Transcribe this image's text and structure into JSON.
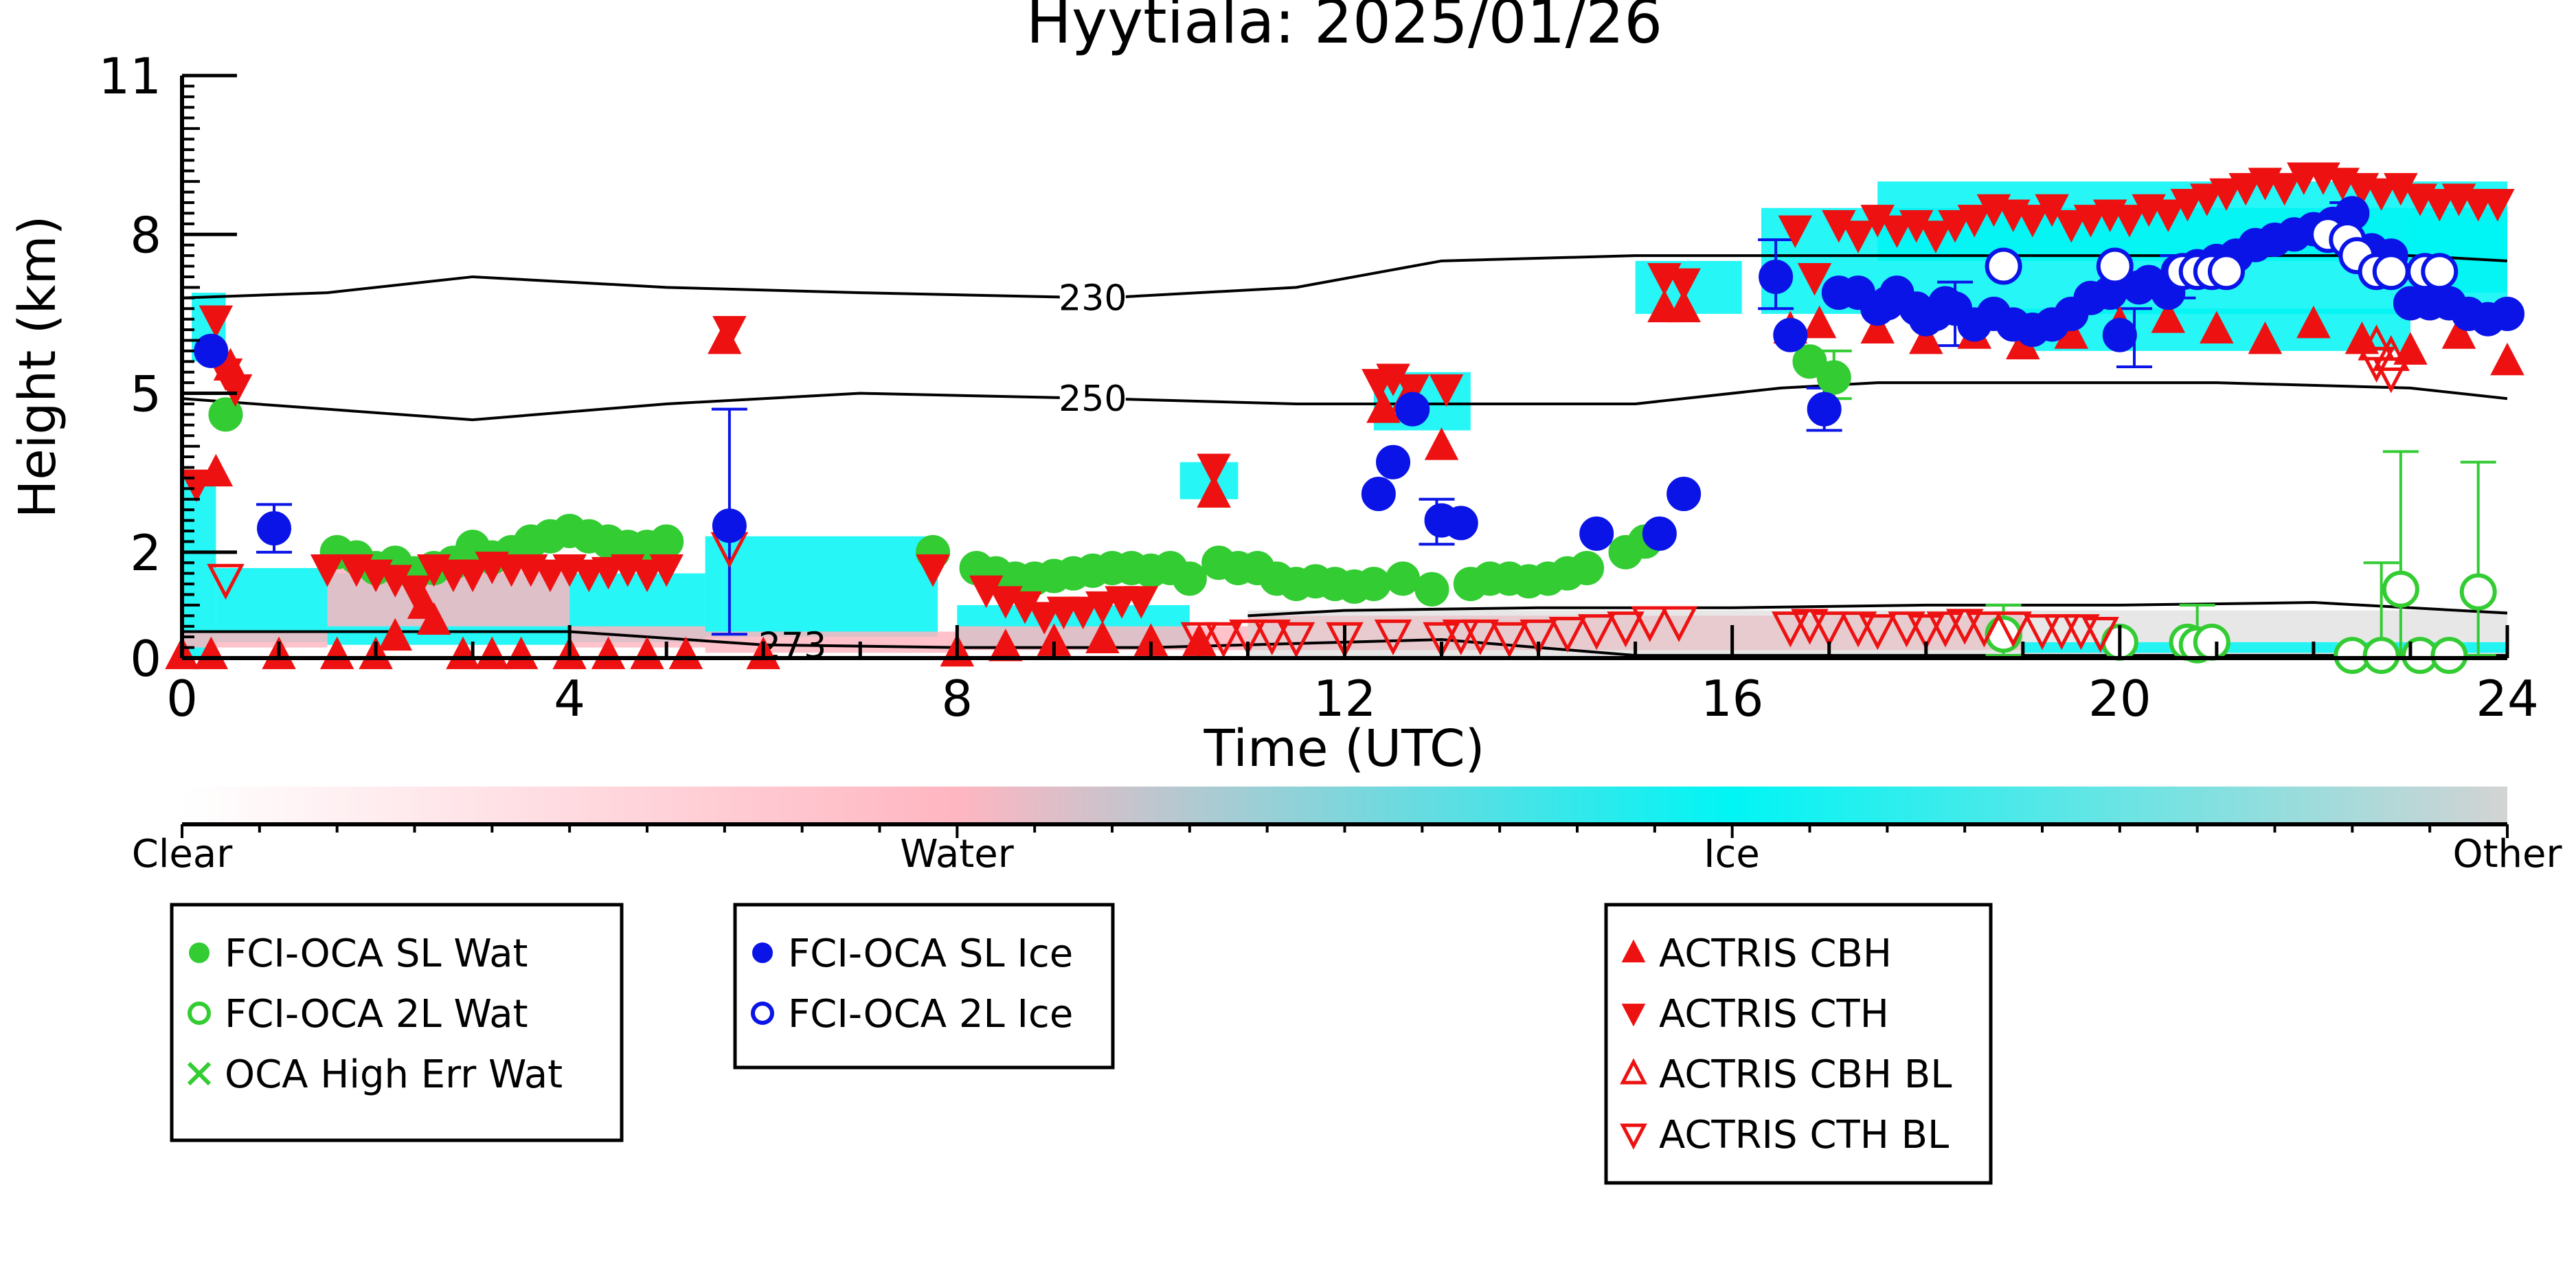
{
  "chart_data": {
    "type": "scatter",
    "title": "Hyytiala: 2025/01/26",
    "xlabel": "Time (UTC)",
    "ylabel": "Height (km)",
    "xlim": [
      0,
      24
    ],
    "ylim": [
      0,
      11
    ],
    "x_ticks": [
      "0",
      "4",
      "8",
      "12",
      "16",
      "20",
      "24"
    ],
    "y_ticks": [
      "0",
      "2",
      "5",
      "8",
      "11"
    ],
    "grid": false,
    "colors": {
      "sl_wat": "#33cc33",
      "sl_ice": "#0a14e6",
      "actris": "#ee1111",
      "ice": "#00f5f5",
      "water": "#ffb6c1",
      "other": "#d3d3d3",
      "contour": "#000000"
    },
    "colorbar": {
      "labels": [
        "Clear",
        "Water",
        "Ice",
        "Other"
      ]
    },
    "legends": [
      {
        "items": [
          {
            "label": "FCI-OCA SL Wat",
            "marker": "filled-circle",
            "color": "#33cc33"
          },
          {
            "label": "FCI-OCA 2L Wat",
            "marker": "open-circle",
            "color": "#33cc33"
          },
          {
            "label": "OCA High Err Wat",
            "marker": "cross",
            "color": "#33cc33"
          }
        ]
      },
      {
        "items": [
          {
            "label": "FCI-OCA SL Ice",
            "marker": "filled-circle",
            "color": "#0a14e6"
          },
          {
            "label": "FCI-OCA 2L Ice",
            "marker": "open-circle",
            "color": "#0a14e6"
          }
        ]
      },
      {
        "items": [
          {
            "label": "ACTRIS CBH",
            "marker": "triangle-up",
            "color": "#ee1111"
          },
          {
            "label": "ACTRIS CTH",
            "marker": "triangle-down",
            "color": "#ee1111"
          },
          {
            "label": "ACTRIS CBH BL",
            "marker": "open-triangle-up",
            "color": "#ee1111"
          },
          {
            "label": "ACTRIS CTH BL",
            "marker": "open-triangle-down",
            "color": "#ee1111"
          }
        ]
      }
    ],
    "contours": [
      {
        "label": "230",
        "x": [
          0,
          1.5,
          3,
          5,
          7,
          9.5,
          11.5,
          13,
          15,
          17,
          19,
          21,
          23,
          24
        ],
        "y": [
          6.8,
          6.9,
          7.2,
          7.0,
          6.9,
          6.8,
          7.0,
          7.5,
          7.6,
          7.6,
          7.6,
          7.6,
          7.6,
          7.5
        ]
      },
      {
        "label": "250",
        "x": [
          0,
          1.5,
          3,
          5,
          7,
          9.5,
          11.5,
          13,
          15,
          16.5,
          17.5,
          19,
          21,
          23,
          24
        ],
        "y": [
          4.9,
          4.7,
          4.5,
          4.8,
          5.0,
          4.9,
          4.8,
          4.8,
          4.8,
          5.1,
          5.2,
          5.2,
          5.2,
          5.1,
          4.9
        ]
      },
      {
        "label": "273",
        "x": [
          0,
          2,
          4,
          6,
          8,
          10,
          11,
          12,
          13,
          14,
          15,
          16,
          18,
          20,
          22,
          24
        ],
        "y": [
          0.5,
          0.5,
          0.5,
          0.25,
          0.2,
          0.2,
          0.25,
          0.3,
          0.35,
          0.2,
          0.05,
          0.05,
          0.05,
          0.05,
          0.05,
          0.05
        ]
      },
      {
        "label": "",
        "x": [
          11,
          12,
          14,
          16,
          18,
          20,
          22,
          24
        ],
        "y": [
          0.8,
          0.9,
          0.95,
          0.95,
          1.0,
          1.0,
          1.05,
          0.85
        ]
      }
    ],
    "series": [
      {
        "name": "FCI-OCA SL Wat",
        "x": [
          0.45,
          1.6,
          1.8,
          2.0,
          2.2,
          2.4,
          2.6,
          2.8,
          3.0,
          3.2,
          3.4,
          3.6,
          3.8,
          4.0,
          4.2,
          4.4,
          4.6,
          4.8,
          5.0,
          7.75,
          8.2,
          8.4,
          8.6,
          8.8,
          9.0,
          9.2,
          9.4,
          9.6,
          9.8,
          10.0,
          10.2,
          10.4,
          10.7,
          10.9,
          11.1,
          11.3,
          11.5,
          11.7,
          11.9,
          12.1,
          12.3,
          12.6,
          12.9,
          13.3,
          13.5,
          13.7,
          13.9,
          14.1,
          14.3,
          14.5,
          14.9,
          15.1,
          16.8,
          17.05
        ],
        "y": [
          4.6,
          2.0,
          1.9,
          1.7,
          1.8,
          1.6,
          1.7,
          1.8,
          2.1,
          1.9,
          2.0,
          2.2,
          2.3,
          2.4,
          2.3,
          2.2,
          2.1,
          2.1,
          2.2,
          2.0,
          1.7,
          1.6,
          1.5,
          1.5,
          1.55,
          1.6,
          1.65,
          1.7,
          1.7,
          1.65,
          1.7,
          1.5,
          1.8,
          1.7,
          1.7,
          1.5,
          1.4,
          1.45,
          1.4,
          1.35,
          1.4,
          1.5,
          1.3,
          1.4,
          1.5,
          1.5,
          1.45,
          1.5,
          1.6,
          1.7,
          2.0,
          2.2,
          5.6,
          5.3
        ]
      },
      {
        "name": "FCI-OCA 2L Wat",
        "x": [
          18.8,
          20.0,
          20.7,
          20.8,
          20.95,
          22.4,
          22.7,
          22.9,
          23.1,
          23.4,
          23.7
        ],
        "y": [
          0.45,
          0.3,
          0.3,
          0.25,
          0.3,
          0.05,
          0.05,
          1.3,
          0.05,
          0.05,
          1.25
        ]
      },
      {
        "name": "FCI-OCA SL Ice",
        "x": [
          0.3,
          0.95,
          5.65,
          12.35,
          12.5,
          12.7,
          13.0,
          13.2,
          14.6,
          15.25,
          15.5,
          16.45,
          16.6,
          16.95,
          17.1,
          17.3,
          17.5,
          17.6,
          17.7,
          17.9,
          18.0,
          18.1,
          18.2,
          18.3,
          18.5,
          18.7,
          18.9,
          19.1,
          19.3,
          19.5,
          19.7,
          19.9,
          20.0,
          20.2,
          20.3,
          20.5,
          20.6,
          20.8,
          21.0,
          21.2,
          21.4,
          21.6,
          21.8,
          22.0,
          22.2,
          22.4,
          22.6,
          22.8,
          23.0,
          23.2,
          23.4,
          23.6,
          23.8,
          24.0
        ],
        "y": [
          5.8,
          2.45,
          2.5,
          3.1,
          3.7,
          4.7,
          2.6,
          2.55,
          2.35,
          2.35,
          3.1,
          7.2,
          6.1,
          4.7,
          6.9,
          6.9,
          6.6,
          6.7,
          6.9,
          6.6,
          6.4,
          6.5,
          6.7,
          6.6,
          6.3,
          6.5,
          6.3,
          6.2,
          6.3,
          6.5,
          6.8,
          6.9,
          6.1,
          7.0,
          7.1,
          6.9,
          7.3,
          7.4,
          7.5,
          7.6,
          7.8,
          7.9,
          8.0,
          8.1,
          8.2,
          8.4,
          7.7,
          7.6,
          6.7,
          6.7,
          6.7,
          6.5,
          6.4,
          6.5
        ]
      },
      {
        "name": "FCI-OCA 2L Ice",
        "x": [
          18.8,
          19.95,
          20.65,
          20.8,
          20.95,
          21.1,
          22.15,
          22.35,
          22.45,
          22.65,
          22.8,
          23.15,
          23.3
        ],
        "y": [
          7.4,
          7.4,
          7.3,
          7.3,
          7.3,
          7.3,
          8.0,
          7.9,
          7.6,
          7.3,
          7.3,
          7.3,
          7.3
        ]
      },
      {
        "name": "ACTRIS CBH",
        "x": [
          0.0,
          0.3,
          0.35,
          0.5,
          1.0,
          1.6,
          2.0,
          2.2,
          2.5,
          2.6,
          2.9,
          3.2,
          3.5,
          4.0,
          4.4,
          4.8,
          5.2,
          5.6,
          6.0,
          8.0,
          8.5,
          9.0,
          9.5,
          10.0,
          10.5,
          10.65,
          12.4,
          12.65,
          13.0,
          15.3,
          15.5,
          16.6,
          16.9,
          17.5,
          18.0,
          18.5,
          19.0,
          19.5,
          20.0,
          20.5,
          21.0,
          21.5,
          22.0,
          22.5,
          23.0,
          23.5,
          24.0
        ],
        "y": [
          0.05,
          0.05,
          3.5,
          5.5,
          0.05,
          0.05,
          0.05,
          0.4,
          1.0,
          0.7,
          0.05,
          0.05,
          0.05,
          0.05,
          0.05,
          0.05,
          0.05,
          6.0,
          0.05,
          0.1,
          0.2,
          0.3,
          0.35,
          0.3,
          0.3,
          3.1,
          4.7,
          4.9,
          4.0,
          6.6,
          6.6,
          6.2,
          6.3,
          6.2,
          6.0,
          6.1,
          5.9,
          6.1,
          6.3,
          6.4,
          6.2,
          6.0,
          6.3,
          6.0,
          5.8,
          6.1,
          5.6
        ]
      },
      {
        "name": "ACTRIS CTH",
        "x": [
          0.15,
          0.35,
          0.45,
          0.55,
          1.5,
          1.8,
          2.0,
          2.2,
          2.4,
          2.6,
          2.8,
          3.0,
          3.2,
          3.4,
          3.6,
          3.8,
          4.0,
          4.2,
          4.4,
          4.6,
          4.8,
          5.0,
          5.65,
          7.75,
          8.3,
          8.5,
          8.7,
          8.9,
          9.1,
          9.3,
          9.5,
          9.7,
          9.9,
          10.65,
          12.35,
          12.5,
          12.7,
          13.05,
          15.3,
          15.5,
          16.65,
          16.85,
          17.1,
          17.3,
          17.5,
          17.7,
          17.9,
          18.1,
          18.3,
          18.5,
          18.7,
          18.9,
          19.1,
          19.3,
          19.5,
          19.7,
          19.9,
          20.1,
          20.3,
          20.5,
          20.7,
          20.9,
          21.1,
          21.3,
          21.5,
          21.7,
          21.9,
          22.1,
          22.3,
          22.5,
          22.7,
          22.9,
          23.1,
          23.3,
          23.5,
          23.7,
          23.9
        ],
        "y": [
          3.3,
          6.4,
          5.4,
          5.1,
          1.7,
          1.7,
          1.6,
          1.5,
          1.3,
          1.7,
          1.6,
          1.6,
          1.75,
          1.7,
          1.7,
          1.6,
          1.7,
          1.6,
          1.65,
          1.7,
          1.6,
          1.7,
          6.2,
          1.7,
          1.3,
          1.1,
          1.0,
          0.8,
          0.9,
          0.9,
          1.0,
          1.1,
          1.1,
          3.6,
          5.2,
          5.3,
          5.1,
          5.1,
          7.2,
          7.1,
          8.1,
          7.2,
          8.2,
          8.0,
          8.3,
          8.1,
          8.2,
          8.0,
          8.2,
          8.3,
          8.5,
          8.4,
          8.3,
          8.5,
          8.2,
          8.3,
          8.4,
          8.3,
          8.5,
          8.4,
          8.6,
          8.7,
          8.8,
          8.9,
          9.0,
          8.9,
          9.1,
          9.1,
          9.0,
          8.9,
          8.8,
          8.9,
          8.7,
          8.6,
          8.7,
          8.6,
          8.6
        ]
      },
      {
        "name": "ACTRIS CBH BL",
        "x": [
          22.65,
          22.8
        ],
        "y": [
          5.9,
          5.7
        ]
      },
      {
        "name": "ACTRIS CTH BL",
        "x": [
          0.45,
          5.65,
          10.5,
          10.75,
          11.0,
          11.25,
          11.5,
          12.0,
          12.5,
          13.0,
          13.2,
          13.4,
          13.7,
          14.0,
          14.3,
          14.6,
          14.9,
          15.15,
          15.45,
          16.6,
          16.8,
          17.0,
          17.3,
          17.5,
          17.8,
          18.0,
          18.2,
          18.4,
          18.6,
          18.9,
          19.2,
          19.4,
          19.6,
          19.8,
          22.65,
          22.8
        ],
        "y": [
          1.5,
          2.1,
          0.4,
          0.4,
          0.45,
          0.45,
          0.4,
          0.4,
          0.45,
          0.4,
          0.45,
          0.45,
          0.4,
          0.45,
          0.5,
          0.55,
          0.6,
          0.7,
          0.7,
          0.6,
          0.65,
          0.6,
          0.6,
          0.55,
          0.6,
          0.55,
          0.6,
          0.65,
          0.6,
          0.6,
          0.55,
          0.55,
          0.55,
          0.5,
          5.6,
          5.4
        ]
      }
    ],
    "error_bars": [
      {
        "series": "FCI-OCA SL Ice",
        "x": 0.95,
        "low": 2.0,
        "high": 2.9
      },
      {
        "series": "FCI-OCA SL Ice",
        "x": 5.65,
        "low": 0.45,
        "high": 4.7
      },
      {
        "series": "FCI-OCA SL Ice",
        "x": 12.95,
        "low": 2.15,
        "high": 3.0
      },
      {
        "series": "FCI-OCA SL Ice",
        "x": 16.45,
        "low": 6.6,
        "high": 7.9
      },
      {
        "series": "FCI-OCA SL Ice",
        "x": 16.95,
        "low": 4.3,
        "high": 5.1
      },
      {
        "series": "FCI-OCA SL Ice",
        "x": 18.3,
        "low": 5.9,
        "high": 7.1
      },
      {
        "series": "FCI-OCA SL Ice",
        "x": 20.15,
        "low": 5.5,
        "high": 6.6
      },
      {
        "series": "FCI-OCA SL Ice",
        "x": 20.6,
        "low": 6.8,
        "high": 7.6
      },
      {
        "series": "FCI-OCA SL Ice",
        "x": 22.35,
        "low": 7.8,
        "high": 8.6
      },
      {
        "series": "FCI-OCA SL Wat",
        "x": 17.05,
        "low": 4.9,
        "high": 5.8
      },
      {
        "series": "FCI-OCA 2L Wat",
        "x": 22.9,
        "low": 0.05,
        "high": 3.9
      },
      {
        "series": "FCI-OCA 2L Wat",
        "x": 23.7,
        "low": 0.05,
        "high": 3.7
      },
      {
        "series": "FCI-OCA 2L Wat",
        "x": 22.7,
        "low": 0.05,
        "high": 1.8
      },
      {
        "series": "FCI-OCA 2L Wat",
        "x": 20.8,
        "low": 0.05,
        "high": 1.0
      },
      {
        "series": "FCI-OCA 2L Wat",
        "x": 18.8,
        "low": 0.05,
        "high": 1.0
      }
    ],
    "background_regions": [
      {
        "class": "ice",
        "x0": 0.0,
        "x1": 0.35,
        "y0": 0.0,
        "y1": 3.5
      },
      {
        "class": "ice",
        "x0": 0.1,
        "x1": 0.45,
        "y0": 5.6,
        "y1": 6.9
      },
      {
        "class": "ice",
        "x0": 0.35,
        "x1": 1.5,
        "y0": 0.3,
        "y1": 1.7
      },
      {
        "class": "water",
        "x0": 0.0,
        "x1": 1.5,
        "y0": 0.2,
        "y1": 0.5
      },
      {
        "class": "ice",
        "x0": 1.5,
        "x1": 4.0,
        "y0": 0.25,
        "y1": 1.6
      },
      {
        "class": "water",
        "x0": 1.5,
        "x1": 4.0,
        "y0": 0.6,
        "y1": 1.7
      },
      {
        "class": "ice",
        "x0": 4.0,
        "x1": 5.4,
        "y0": 0.3,
        "y1": 1.6
      },
      {
        "class": "water",
        "x0": 4.0,
        "x1": 5.4,
        "y0": 0.2,
        "y1": 0.6
      },
      {
        "class": "ice",
        "x0": 5.4,
        "x1": 7.8,
        "y0": 0.4,
        "y1": 2.3
      },
      {
        "class": "water",
        "x0": 5.4,
        "x1": 8.0,
        "y0": 0.1,
        "y1": 0.5
      },
      {
        "class": "ice",
        "x0": 8.0,
        "x1": 10.4,
        "y0": 0.2,
        "y1": 1.0
      },
      {
        "class": "water",
        "x0": 8.0,
        "x1": 11.0,
        "y0": 0.15,
        "y1": 0.6
      },
      {
        "class": "ice",
        "x0": 10.3,
        "x1": 10.9,
        "y0": 3.0,
        "y1": 3.7
      },
      {
        "class": "ice",
        "x0": 12.3,
        "x1": 13.3,
        "y0": 4.3,
        "y1": 5.4
      },
      {
        "class": "water",
        "x0": 11.0,
        "x1": 19.0,
        "y0": 0.15,
        "y1": 0.8
      },
      {
        "class": "other",
        "x0": 11.0,
        "x1": 24.0,
        "y0": 0.0,
        "y1": 0.9
      },
      {
        "class": "ice",
        "x0": 15.0,
        "x1": 16.1,
        "y0": 6.5,
        "y1": 7.5
      },
      {
        "class": "ice",
        "x0": 16.3,
        "x1": 24.0,
        "y0": 6.5,
        "y1": 8.5
      },
      {
        "class": "ice",
        "x0": 17.5,
        "x1": 24.0,
        "y0": 7.5,
        "y1": 9.0
      },
      {
        "class": "ice",
        "x0": 19.0,
        "x1": 23.0,
        "y0": 5.8,
        "y1": 6.6
      },
      {
        "class": "ice",
        "x0": 19.0,
        "x1": 24.0,
        "y0": 0.1,
        "y1": 0.3
      },
      {
        "class": "ice",
        "x0": 23.0,
        "x1": 24.0,
        "y0": 6.9,
        "y1": 8.3
      }
    ]
  }
}
